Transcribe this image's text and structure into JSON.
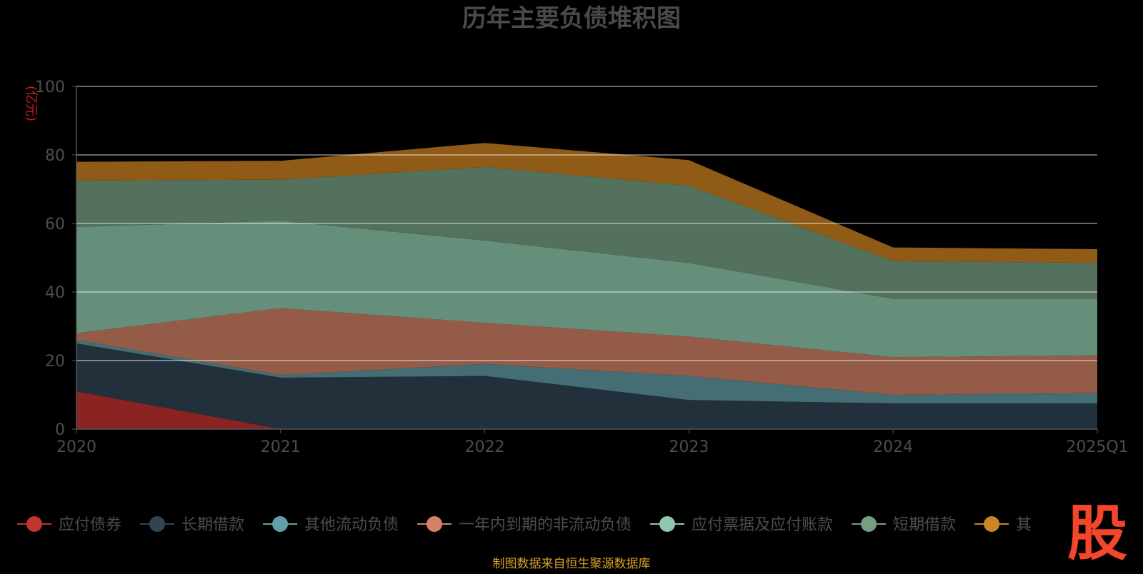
{
  "chart_data": {
    "type": "area",
    "stacked": true,
    "title": "历年主要负债堆积图",
    "unit_label": "(亿元)",
    "categories": [
      "2020",
      "2021",
      "2022",
      "2023",
      "2024",
      "2025Q1"
    ],
    "ylim": [
      0,
      100
    ],
    "yticks": [
      0,
      20,
      40,
      60,
      80,
      100
    ],
    "grid": true,
    "legend_position": "bottom",
    "series": [
      {
        "name": "应付债券",
        "color": "#8b2323",
        "marker_color": "#c23531",
        "values": [
          11,
          0,
          0,
          0,
          0,
          0
        ]
      },
      {
        "name": "长期借款",
        "color": "#22303c",
        "marker_color": "#2f4554",
        "values": [
          14,
          15,
          15.5,
          8.5,
          7.5,
          7.5
        ]
      },
      {
        "name": "其他流动负债",
        "color": "#456d74",
        "marker_color": "#61a0a8",
        "values": [
          1,
          0.8,
          3.5,
          7,
          2.5,
          3
        ]
      },
      {
        "name": "一年内到期的非流动负债",
        "color": "#935b48",
        "marker_color": "#d48265",
        "values": [
          2,
          19.5,
          12,
          11.5,
          11,
          11
        ]
      },
      {
        "name": "应付票据及应付账款",
        "color": "#668f7b",
        "marker_color": "#91c7ae",
        "values": [
          31,
          25.5,
          24,
          21.5,
          17,
          16.5
        ]
      },
      {
        "name": "短期借款",
        "color": "#53715c",
        "marker_color": "#749f83",
        "values": [
          13.5,
          12,
          21.5,
          22.5,
          11,
          10.5
        ]
      },
      {
        "name": "其他",
        "color": "#8f5b17",
        "marker_color": "#ca8622",
        "values": [
          5.5,
          5.5,
          7,
          7.5,
          4,
          4
        ]
      }
    ]
  },
  "legend_visible_labels": [
    "应付债券",
    "长期借款",
    "其他流动负债",
    "一年内到期的非流动负债",
    "应付票据及应付账款",
    "短期借款",
    "其"
  ],
  "watermark": {
    "text": "股",
    "color": "#f5452b"
  },
  "source_note": {
    "text": "制图数据来自恒生聚源数据库",
    "color": "#d9a02a"
  }
}
